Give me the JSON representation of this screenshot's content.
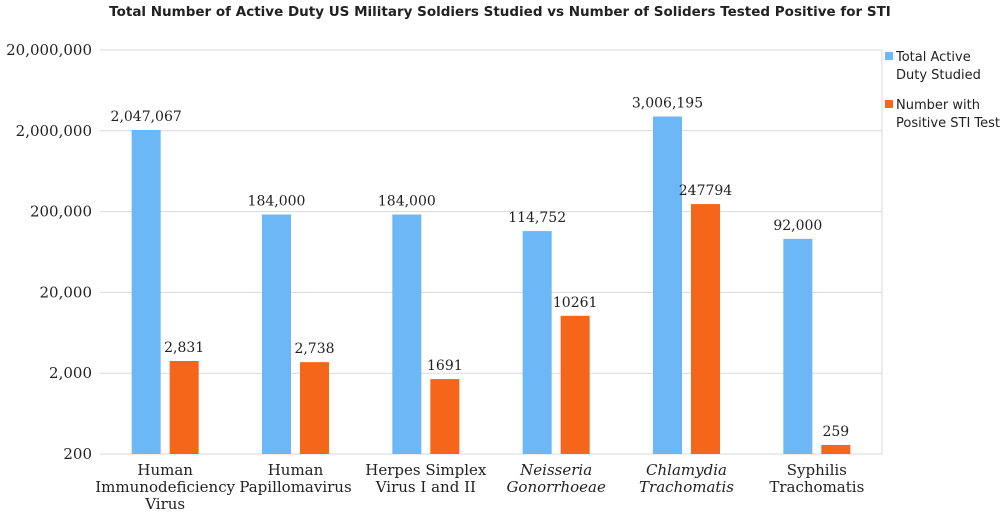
{
  "chart_data": {
    "type": "bar",
    "title": "Total Number of Active Duty US Military Soldiers Studied vs Number of Soliders Tested Positive for STI",
    "scale": "log",
    "ylim": [
      200,
      20000000
    ],
    "yticks": [
      "20,000,000",
      "2,000,000",
      "200,000",
      "20,000",
      "2,000",
      "200"
    ],
    "ytick_values": [
      20000000,
      2000000,
      200000,
      20000,
      2000,
      200
    ],
    "grid": true,
    "legend_position": "right",
    "categories": [
      {
        "lines": [
          "Human",
          "Immunodeficiency",
          "Virus"
        ],
        "italic": false
      },
      {
        "lines": [
          "Human",
          "Papillomavirus"
        ],
        "italic": false
      },
      {
        "lines": [
          "Herpes Simplex",
          "Virus I and II"
        ],
        "italic": false
      },
      {
        "lines": [
          "Neisseria",
          "Gonorrhoeae"
        ],
        "italic": true
      },
      {
        "lines": [
          "Chlamydia",
          "Trachomatis"
        ],
        "italic": true
      },
      {
        "lines": [
          "Syphilis",
          "Trachomatis"
        ],
        "italic": false
      }
    ],
    "series": [
      {
        "name_lines": [
          "Total Active",
          "Duty Studied"
        ],
        "color": "#6cb7f5",
        "values": [
          2047067,
          184000,
          184000,
          114752,
          3006195,
          92000
        ],
        "labels": [
          "2,047,067",
          "184,000",
          "184,000",
          "114,752",
          "3,006,195",
          "92,000"
        ]
      },
      {
        "name_lines": [
          "Number with",
          "Positive STI Test"
        ],
        "color": "#f5651a",
        "values": [
          2831,
          2738,
          1691,
          10261,
          247794,
          259
        ],
        "labels": [
          "2,831",
          "2,738",
          "1691",
          "10261",
          "247794",
          "259"
        ]
      }
    ]
  }
}
